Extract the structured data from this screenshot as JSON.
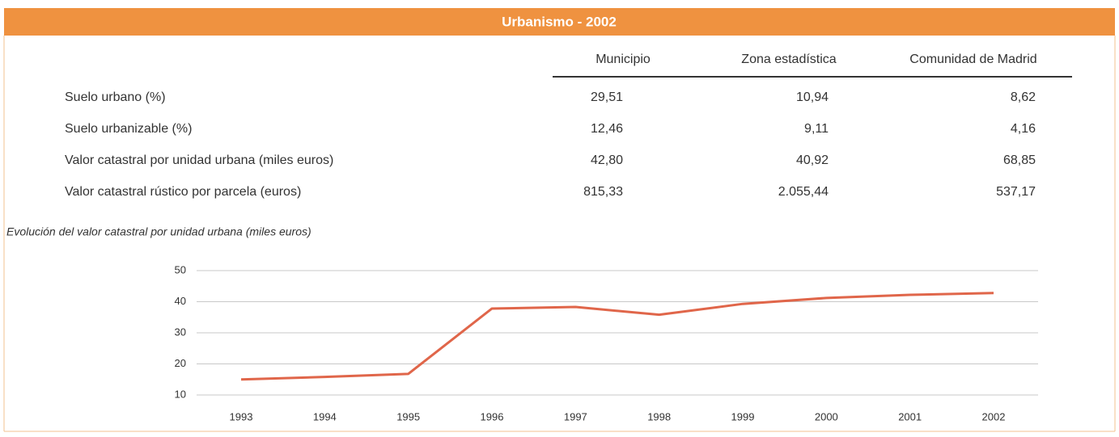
{
  "header": {
    "title": "Urbanismo - 2002"
  },
  "table": {
    "columns": [
      "Municipio",
      "Zona estadística",
      "Comunidad de Madrid"
    ],
    "rows": [
      [
        "Suelo urbano (%)",
        "29,51",
        "10,94",
        "8,62"
      ],
      [
        "Suelo urbanizable (%)",
        "12,46",
        "9,11",
        "4,16"
      ],
      [
        "Valor catastral por unidad urbana (miles euros)",
        "42,80",
        "40,92",
        "68,85"
      ],
      [
        "Valor catastral rústico por parcela (euros)",
        "815,33",
        "2.055,44",
        "537,17"
      ]
    ]
  },
  "chart_data": {
    "type": "line",
    "title": "Evolución del valor catastral por unidad urbana (miles euros)",
    "categories": [
      "1993",
      "1994",
      "1995",
      "1996",
      "1997",
      "1998",
      "1999",
      "2000",
      "2001",
      "2002"
    ],
    "values": [
      15,
      15.8,
      16.8,
      37.8,
      38.3,
      35.8,
      39.3,
      41.2,
      42.2,
      42.8
    ],
    "color": "#e0664a",
    "ylim": [
      10,
      50
    ],
    "yticks": [
      10,
      20,
      30,
      40,
      50
    ],
    "grid": true
  }
}
